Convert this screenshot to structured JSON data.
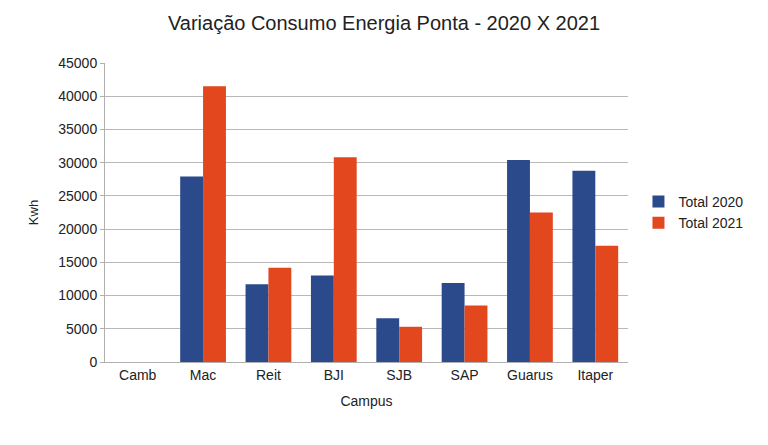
{
  "chart_data": {
    "type": "bar",
    "title": "Variação Consumo Energia Ponta - 2020 X 2021",
    "x_label": "Campus",
    "y_label": "Kwh",
    "categories": [
      "Camb",
      "Mac",
      "Reit",
      "BJI",
      "SJB",
      "SAP",
      "Guarus",
      "Itaper"
    ],
    "series": [
      {
        "name": "Total 2020",
        "color": "#2b4a8b",
        "values": [
          0,
          27900,
          11700,
          13000,
          6600,
          11900,
          30400,
          28800
        ]
      },
      {
        "name": "Total 2021",
        "color": "#e2471e",
        "values": [
          0,
          41500,
          14200,
          30800,
          5300,
          8500,
          22500,
          17500
        ]
      }
    ],
    "ylim": [
      0,
      45000
    ],
    "yticks": [
      0,
      5000,
      10000,
      15000,
      20000,
      25000,
      30000,
      35000,
      40000,
      45000
    ],
    "grid": true,
    "legend": "right"
  }
}
